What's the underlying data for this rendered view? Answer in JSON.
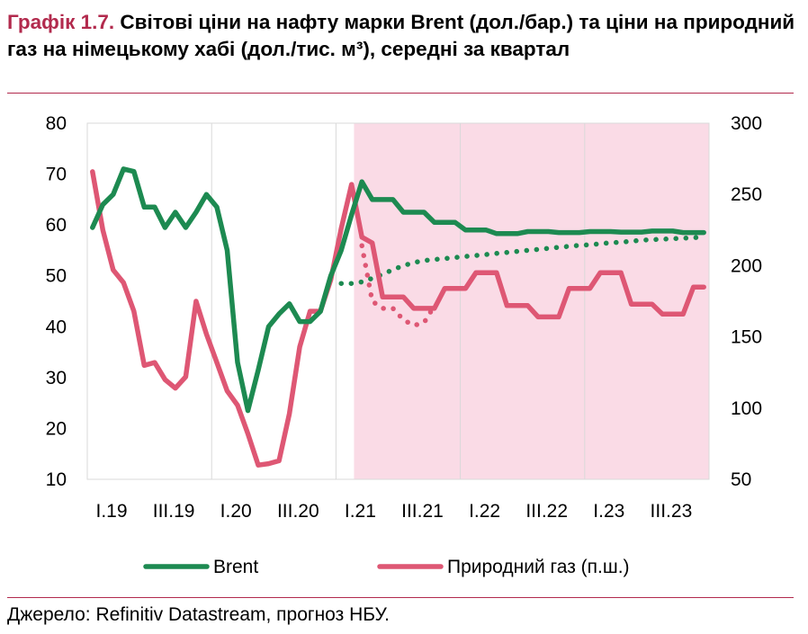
{
  "title": {
    "prefix": "Графік 1.7.",
    "text": "Світові ціни на нафту марки Brent (дол./бар.) та ціни на природний газ на німецькому хабі (дол./тис. м³), середні за квартал"
  },
  "source": "Джерело: Refinitiv Datastream, прогноз НБУ.",
  "colors": {
    "brent": "#1d8a51",
    "gas": "#de5774",
    "forecast_shade": "#fadbe6",
    "grid": "#d9d9d9"
  },
  "chart_data": {
    "type": "line",
    "x_tick_labels": [
      "I.19",
      "III.19",
      "I.20",
      "III.20",
      "I.21",
      "III.21",
      "I.22",
      "III.22",
      "I.23",
      "III.23"
    ],
    "x_range": [
      "2019-01",
      "2023-12"
    ],
    "forecast_start": "2021-03",
    "y_left": {
      "range": [
        10,
        80
      ],
      "ticks": [
        10,
        20,
        30,
        40,
        50,
        60,
        70,
        80
      ]
    },
    "y_right": {
      "range": [
        50,
        300
      ],
      "ticks": [
        50,
        100,
        150,
        200,
        250,
        300
      ]
    },
    "series": [
      {
        "name": "Brent",
        "axis": "left",
        "style": "solid",
        "x": [
          "2019-01",
          "2019-02",
          "2019-03",
          "2019-04",
          "2019-05",
          "2019-06",
          "2019-07",
          "2019-08",
          "2019-09",
          "2019-10",
          "2019-11",
          "2019-12",
          "2020-01",
          "2020-02",
          "2020-03",
          "2020-04",
          "2020-05",
          "2020-06",
          "2020-07",
          "2020-08",
          "2020-09",
          "2020-10",
          "2020-11",
          "2020-12",
          "2021-01",
          "2021-02",
          "2021-03",
          "2021-04",
          "2021-05",
          "2021-06",
          "2021-07",
          "2021-08",
          "2021-09",
          "2021-10",
          "2021-11",
          "2021-12",
          "2022-01",
          "2022-02",
          "2022-03",
          "2022-04",
          "2022-05",
          "2022-06",
          "2022-07",
          "2022-08",
          "2022-09",
          "2022-10",
          "2022-11",
          "2022-12",
          "2023-01",
          "2023-02",
          "2023-03",
          "2023-04",
          "2023-05",
          "2023-06",
          "2023-07",
          "2023-08",
          "2023-09",
          "2023-10",
          "2023-11",
          "2023-12"
        ],
        "values": [
          59.5,
          64,
          66,
          71,
          70.5,
          63.5,
          63.5,
          59.5,
          62.5,
          59.5,
          62.5,
          66,
          63.5,
          55,
          33,
          23.5,
          31.5,
          40,
          42.5,
          44.5,
          41,
          41,
          43,
          50,
          55,
          62,
          68.5,
          65,
          65,
          65,
          62.5,
          62.5,
          62.5,
          60.5,
          60.5,
          60.5,
          59,
          59,
          59,
          58.3,
          58.3,
          58.3,
          58.7,
          58.7,
          58.7,
          58.5,
          58.5,
          58.5,
          58.7,
          58.7,
          58.7,
          58.6,
          58.6,
          58.6,
          58.8,
          58.8,
          58.8,
          58.5,
          58.5,
          58.5
        ]
      },
      {
        "name": "Brent (прогноз)",
        "axis": "left",
        "style": "dotted",
        "x": [
          "2021-01",
          "2021-02",
          "2021-03",
          "2021-04",
          "2021-05",
          "2021-06",
          "2021-07",
          "2021-08",
          "2021-09",
          "2021-10",
          "2021-11",
          "2021-12",
          "2022-01",
          "2022-02",
          "2022-03",
          "2022-04",
          "2022-05",
          "2022-06",
          "2022-07",
          "2022-08",
          "2022-09",
          "2022-10",
          "2022-11",
          "2022-12",
          "2023-01",
          "2023-02",
          "2023-03",
          "2023-04",
          "2023-05",
          "2023-06",
          "2023-07",
          "2023-08",
          "2023-09",
          "2023-10",
          "2023-11",
          "2023-12"
        ],
        "values": [
          48.5,
          48.5,
          48.8,
          49.5,
          50.3,
          51.2,
          52,
          52.6,
          53,
          53.2,
          53.4,
          53.6,
          53.8,
          54,
          54.2,
          54.4,
          54.6,
          54.8,
          55,
          55.2,
          55.4,
          55.6,
          55.8,
          56,
          56.1,
          56.3,
          56.5,
          56.6,
          56.8,
          57,
          57.1,
          57.2,
          57.3,
          57.4,
          57.5,
          57.6
        ]
      },
      {
        "name": "Природний газ (п.ш.)",
        "axis": "right",
        "style": "solid",
        "x": [
          "2019-01",
          "2019-02",
          "2019-03",
          "2019-04",
          "2019-05",
          "2019-06",
          "2019-07",
          "2019-08",
          "2019-09",
          "2019-10",
          "2019-11",
          "2019-12",
          "2020-01",
          "2020-02",
          "2020-03",
          "2020-04",
          "2020-05",
          "2020-06",
          "2020-07",
          "2020-08",
          "2020-09",
          "2020-10",
          "2020-11",
          "2020-12",
          "2021-01",
          "2021-02",
          "2021-03",
          "2021-04",
          "2021-05",
          "2021-06",
          "2021-07",
          "2021-08",
          "2021-09",
          "2021-10",
          "2021-11",
          "2021-12",
          "2022-01",
          "2022-02",
          "2022-03",
          "2022-04",
          "2022-05",
          "2022-06",
          "2022-07",
          "2022-08",
          "2022-09",
          "2022-10",
          "2022-11",
          "2022-12",
          "2023-01",
          "2023-02",
          "2023-03",
          "2023-04",
          "2023-05",
          "2023-06",
          "2023-07",
          "2023-08",
          "2023-09",
          "2023-10",
          "2023-11",
          "2023-12"
        ],
        "values": [
          266,
          225,
          197,
          188,
          168,
          130,
          132,
          120,
          114,
          122,
          175,
          152,
          132,
          112,
          102,
          82,
          60,
          61,
          63,
          96,
          143,
          168,
          168,
          190,
          226,
          257,
          220,
          216,
          178,
          178,
          178,
          170,
          170,
          170,
          184,
          184,
          184,
          195,
          195,
          195,
          172,
          172,
          172,
          164,
          164,
          164,
          184,
          184,
          184,
          195,
          195,
          195,
          173,
          173,
          173,
          166,
          166,
          166,
          185,
          185
        ]
      },
      {
        "name": "Природний газ (прогноз, п.ш.)",
        "axis": "right",
        "style": "dotted",
        "x": [
          "2021-03",
          "2021-04",
          "2021-05",
          "2021-06",
          "2021-07",
          "2021-08",
          "2021-09",
          "2021-10"
        ],
        "values": [
          214,
          175,
          170,
          170,
          162,
          158,
          160,
          172
        ]
      }
    ],
    "legend": [
      {
        "label": "Brent",
        "series": 0
      },
      {
        "label": "Природний газ (п.ш.)",
        "series": 2
      }
    ],
    "legend_position": "bottom"
  }
}
